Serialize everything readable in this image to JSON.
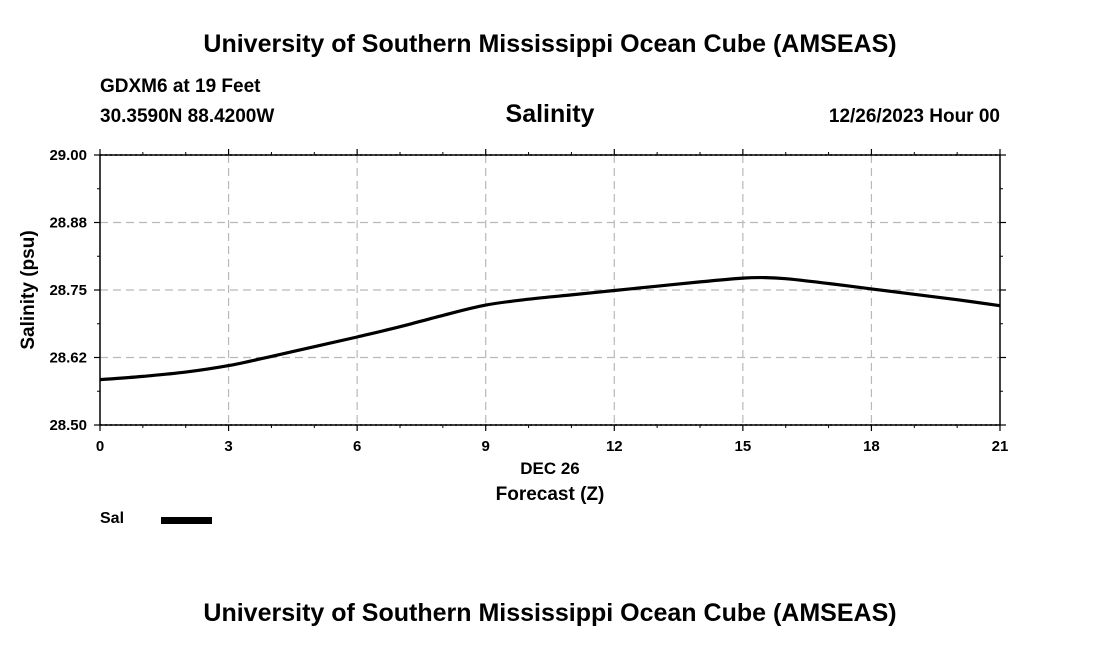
{
  "page": {
    "top_title": "University of Southern Mississippi Ocean Cube (AMSEAS)",
    "bottom_title": "University of Southern Mississippi Ocean Cube (AMSEAS)",
    "station": "GDXM6 at 19 Feet",
    "coords": "30.3590N  88.4200W",
    "parameter": "Salinity",
    "datetime": "12/26/2023 Hour 00"
  },
  "legend": {
    "label": "Sal",
    "color": "#000000"
  },
  "chart_data": {
    "type": "line",
    "title": "Salinity",
    "xlabel": "Forecast (Z)",
    "xsublabel": "DEC 26",
    "ylabel": "Salinity (psu)",
    "xlim": [
      0,
      21
    ],
    "ylim": [
      28.5,
      29.0
    ],
    "xticks": [
      0,
      3,
      6,
      9,
      12,
      15,
      18,
      21
    ],
    "yticks": [
      28.5,
      28.625,
      28.75,
      28.875,
      29.0
    ],
    "ytick_labels": [
      "28.50",
      "28.62",
      "28.75",
      "28.88",
      "29.00"
    ],
    "grid": true,
    "series": [
      {
        "name": "Sal",
        "x": [
          0,
          1,
          2,
          3,
          4,
          5,
          6,
          7,
          8,
          9,
          10,
          11,
          12,
          13,
          14,
          15,
          15.5,
          16,
          17,
          18,
          19,
          20,
          21
        ],
        "y": [
          28.584,
          28.59,
          28.598,
          28.61,
          28.627,
          28.645,
          28.663,
          28.682,
          28.703,
          28.722,
          28.733,
          28.741,
          28.749,
          28.757,
          28.765,
          28.772,
          28.773,
          28.771,
          28.762,
          28.752,
          28.742,
          28.732,
          28.721
        ]
      }
    ]
  }
}
